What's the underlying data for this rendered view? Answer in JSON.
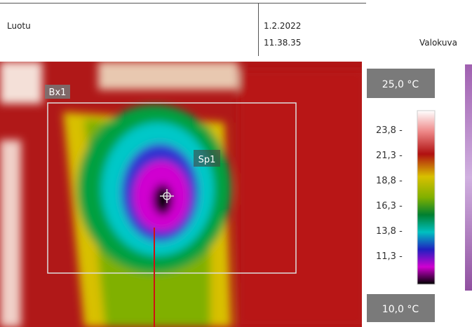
{
  "header": {
    "label": "Luotu",
    "date": "1.2.2022",
    "time": "11.38.35",
    "photo_label": "Valokuva"
  },
  "thermal_image": {
    "box_label": "Bx1",
    "spot_label": "Sp1"
  },
  "scale": {
    "max": "25,0 °C",
    "min": "10,0 °C",
    "ticks": [
      "23,8 -",
      "21,3 -",
      "18,8 -",
      "16,3 -",
      "13,8 -",
      "11,3 -"
    ]
  }
}
